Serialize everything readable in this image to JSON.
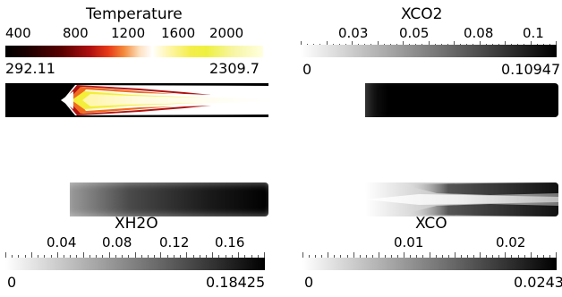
{
  "panels": {
    "temperature": {
      "title": "Temperature",
      "ticks": [
        "400",
        "800",
        "1200",
        "1600",
        "2000"
      ],
      "min": "292.11",
      "max": "2309.7"
    },
    "xco2": {
      "title": "XCO2",
      "ticks": [
        "0.03",
        "0.05",
        "0.08",
        "0.1"
      ],
      "min": "0",
      "max": "0.10947"
    },
    "xh2o": {
      "title": "XH2O",
      "ticks": [
        "0.04",
        "0.08",
        "0.12",
        "0.16"
      ],
      "min": "0",
      "max": "0.18425"
    },
    "xco": {
      "title": "XCO",
      "ticks": [
        "0.01",
        "0.02"
      ],
      "min": "0",
      "max": "0.0243"
    }
  },
  "colors": {
    "background": "#ffffff",
    "hot_colormap": [
      "#000000",
      "#5a0000",
      "#c81e10",
      "#f06a20",
      "#ffffff",
      "#f7f07a",
      "#f2ee3a",
      "#ffffcc"
    ],
    "gray_colormap": [
      "#ffffff",
      "#000000"
    ]
  }
}
